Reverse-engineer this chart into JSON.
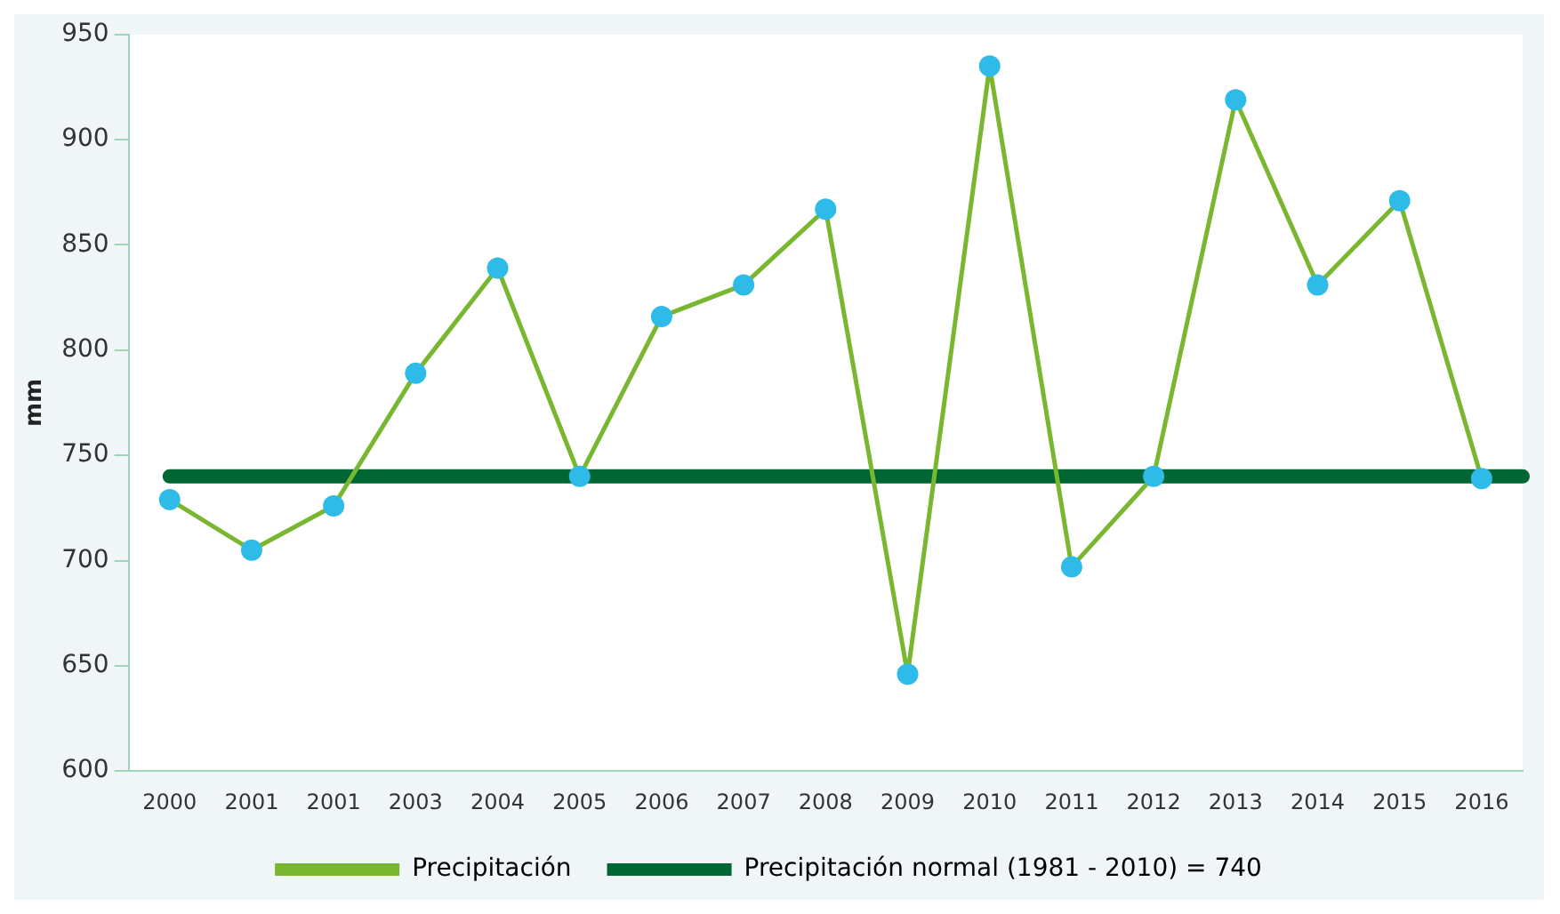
{
  "chart_data": {
    "type": "line",
    "ylabel": "mm",
    "categories": [
      "2000",
      "2001",
      "2001",
      "2003",
      "2004",
      "2005",
      "2006",
      "2007",
      "2008",
      "2009",
      "2010",
      "2011",
      "2012",
      "2013",
      "2014",
      "2015",
      "2016"
    ],
    "series": [
      {
        "name": "Precipitación",
        "color": "#7ab730",
        "colors": [
          "#2fbbe8",
          "#2fbbe8",
          "#2fbbe8",
          "#2fbbe8",
          "#2fbbe8",
          "#2fbbe8",
          "#2fbbe8",
          "#2fbbe8",
          "#2fbbe8",
          "#2fbbe8",
          "#2fbbe8",
          "#2fbbe8",
          "#2fbbe8",
          "#2fbbe8",
          "#2fbbe8",
          "#2fbbe8",
          "#2fbbe8"
        ],
        "values": [
          729,
          705,
          726,
          789,
          839,
          740,
          816,
          831,
          867,
          646,
          935,
          697,
          740,
          919,
          831,
          871,
          739
        ]
      }
    ],
    "ylim": [
      600,
      950
    ],
    "yticks": [
      600,
      650,
      700,
      750,
      800,
      850,
      900,
      950
    ],
    "grid": false,
    "marker": "circle",
    "line_style": "solid",
    "legend": "bottom",
    "ref_lines": [
      {
        "axis": "y",
        "value": 740,
        "label": "Precipitación normal (1981 - 2010) = 740",
        "color": "#006633"
      }
    ]
  }
}
